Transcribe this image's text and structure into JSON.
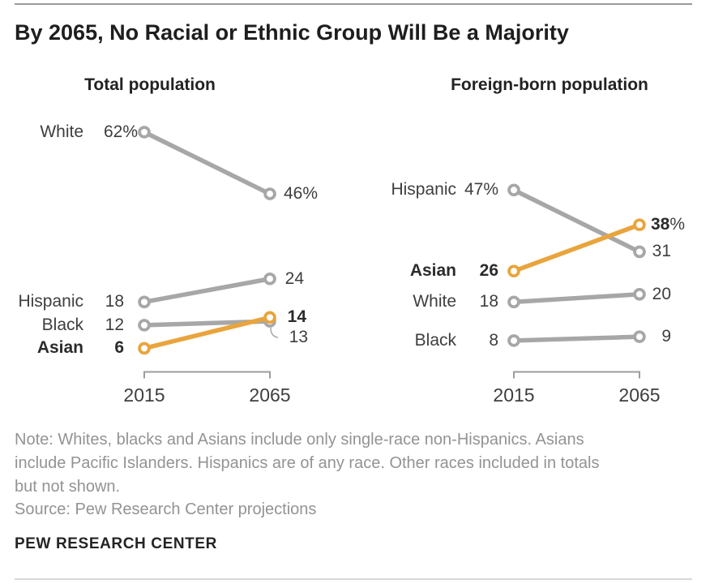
{
  "page": {
    "title": "By 2065, No Racial or Ethnic Group Will Be a Majority",
    "note_lines": [
      "Note: Whites, blacks and Asians include only single-race non-Hispanics. Asians",
      "include Pacific Islanders. Hispanics are of any race. Other races included in totals",
      "but not shown."
    ],
    "source": "Source: Pew Research Center projections",
    "brand": "PEW RESEARCH CENTER"
  },
  "colors": {
    "highlight_orange": "#E9A43C",
    "line_gray": "#A7A7A7",
    "label_dark": "#3E3E3E",
    "label_bold_dark": "#2B2B2B",
    "note_gray": "#939393",
    "axis_gray": "#9C9C9C"
  },
  "chart_data": [
    {
      "type": "line",
      "subtype": "slope",
      "title": "Total population",
      "x_categories": [
        "2015",
        "2065"
      ],
      "ylim": [
        0,
        65
      ],
      "unit": "%",
      "unit_hangs_left": true,
      "legend": "none",
      "grid": false,
      "series": [
        {
          "name": "White",
          "values": [
            62,
            46
          ],
          "start_unit": "%",
          "end_unit": "%",
          "highlight": false
        },
        {
          "name": "Hispanic",
          "values": [
            18,
            24
          ],
          "highlight": false
        },
        {
          "name": "Black",
          "values": [
            12,
            13
          ],
          "highlight": false,
          "leader": true,
          "end_label_dy": 20,
          "end_label_dx": 5
        },
        {
          "name": "Asian",
          "values": [
            6,
            14
          ],
          "highlight": true,
          "end_label_dx": 3
        }
      ]
    },
    {
      "type": "line",
      "subtype": "slope",
      "title": "Foreign-born population",
      "x_categories": [
        "2015",
        "2065"
      ],
      "ylim": [
        0,
        65
      ],
      "unit": "%",
      "unit_hangs_left": false,
      "legend": "none",
      "grid": false,
      "series": [
        {
          "name": "Hispanic",
          "values": [
            47,
            31
          ],
          "start_unit": "%",
          "highlight": false
        },
        {
          "name": "Asian",
          "values": [
            26,
            38
          ],
          "end_unit": "%",
          "highlight": true
        },
        {
          "name": "White",
          "values": [
            18,
            20
          ],
          "highlight": false
        },
        {
          "name": "Black",
          "values": [
            8,
            9
          ],
          "highlight": false
        }
      ]
    }
  ]
}
